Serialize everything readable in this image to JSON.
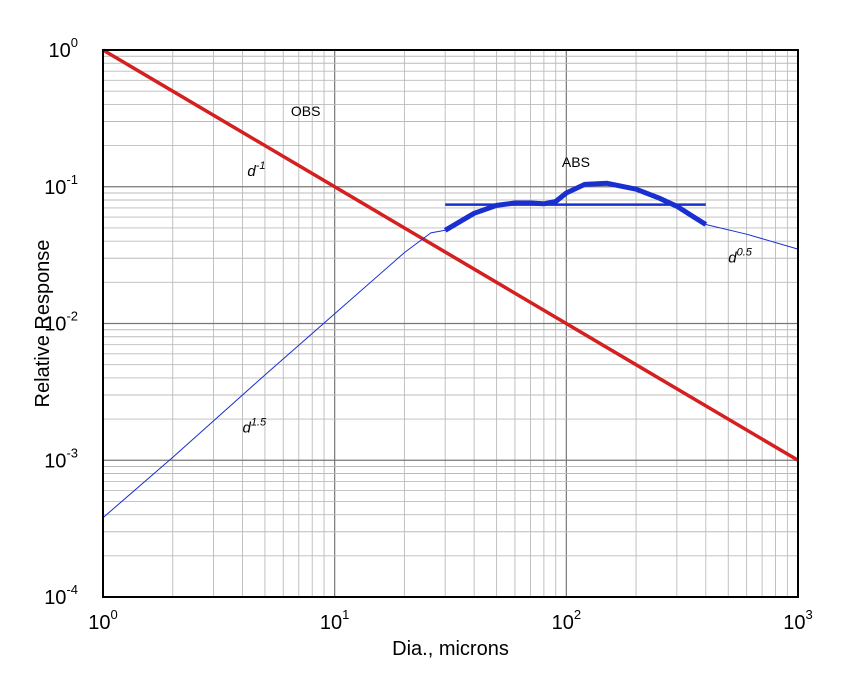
{
  "chart_data": {
    "type": "line",
    "xlabel": "Dia., microns",
    "ylabel": "Relative Response",
    "x_scale": "log",
    "y_scale": "log",
    "xlim": [
      1,
      1000
    ],
    "ylim": [
      0.0001,
      1
    ],
    "grid": true,
    "x_ticks": [
      {
        "value": 1,
        "base": "10",
        "exp": "0"
      },
      {
        "value": 10,
        "base": "10",
        "exp": "1"
      },
      {
        "value": 100,
        "base": "10",
        "exp": "2"
      },
      {
        "value": 1000,
        "base": "10",
        "exp": "3"
      }
    ],
    "y_ticks": [
      {
        "value": 1,
        "base": "10",
        "exp": "0"
      },
      {
        "value": 0.1,
        "base": "10",
        "exp": "-1"
      },
      {
        "value": 0.01,
        "base": "10",
        "exp": "-2"
      },
      {
        "value": 0.001,
        "base": "10",
        "exp": "-3"
      },
      {
        "value": 0.0001,
        "base": "10",
        "exp": "-4"
      }
    ],
    "series": [
      {
        "name": "OBS",
        "color": "#d42020",
        "style": "thick",
        "x": [
          1,
          1000
        ],
        "y": [
          1,
          0.001
        ]
      },
      {
        "color": "#1a2fd0",
        "style": "thin",
        "x": [
          1,
          2,
          5,
          10,
          20,
          26,
          30,
          40,
          50,
          60,
          70,
          80,
          90,
          100,
          120,
          150,
          200,
          300,
          400,
          600,
          1000
        ],
        "y": [
          0.00038,
          0.00105,
          0.0042,
          0.0118,
          0.033,
          0.046,
          0.048,
          0.064,
          0.073,
          0.076,
          0.076,
          0.075,
          0.078,
          0.09,
          0.104,
          0.106,
          0.096,
          0.072,
          0.053,
          0.045,
          0.035
        ]
      },
      {
        "name": "ABS",
        "color": "#1a2fd0",
        "style": "thick",
        "x": [
          30,
          40,
          50,
          60,
          70,
          80,
          90,
          100,
          120,
          150,
          200,
          250,
          300,
          350,
          400
        ],
        "y": [
          0.048,
          0.064,
          0.073,
          0.076,
          0.076,
          0.075,
          0.078,
          0.09,
          0.104,
          0.106,
          0.096,
          0.083,
          0.072,
          0.061,
          0.053
        ]
      },
      {
        "color": "#1a2fd0",
        "style": "medium",
        "x": [
          30,
          400
        ],
        "y": [
          0.074,
          0.074
        ]
      }
    ],
    "annotations": [
      {
        "text": "OBS",
        "x": 7.5,
        "y": 0.33
      },
      {
        "text": "ABS",
        "x": 110,
        "y": 0.14
      },
      {
        "base": "d",
        "sup": "-1",
        "x": 4.2,
        "y": 0.12
      },
      {
        "base": "d",
        "sup": "1.5",
        "x": 4.0,
        "y": 0.0016
      },
      {
        "base": "d",
        "sup": "0.5",
        "x": 500,
        "y": 0.028
      }
    ]
  }
}
